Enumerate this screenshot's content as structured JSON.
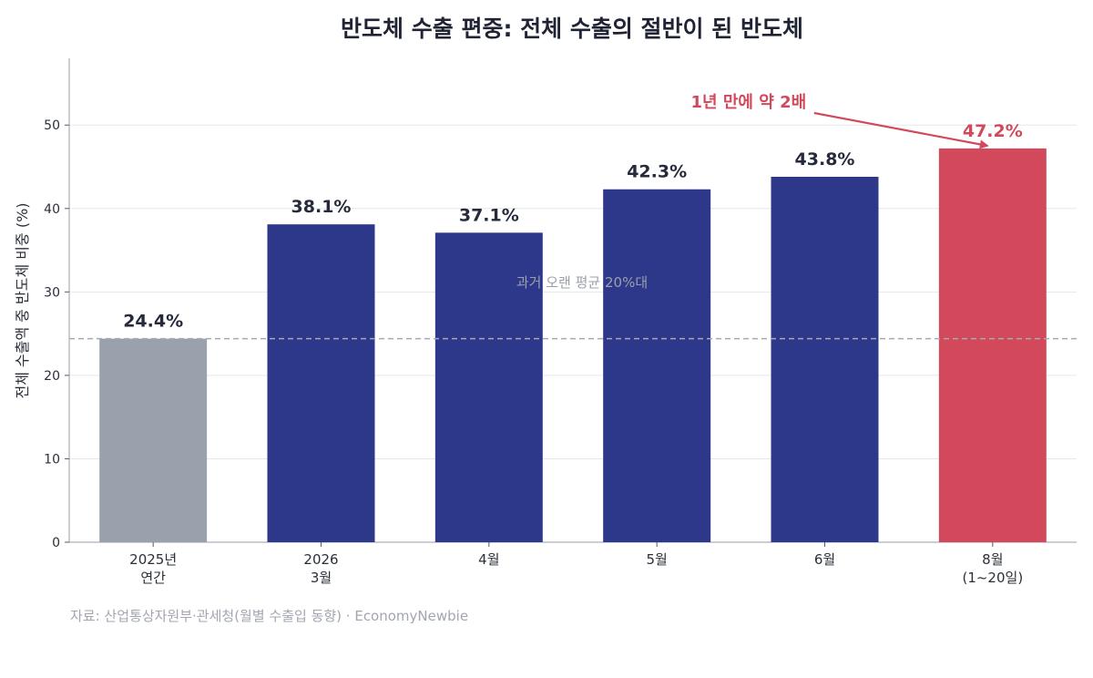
{
  "chart_data": {
    "type": "bar",
    "title": "반도체 수출 편중: 전체 수출의 절반이 된 반도체",
    "ylabel": "전체 수출액 중 반도체 비중 (%)",
    "xlabel": "",
    "ylim": [
      0,
      58
    ],
    "yticks": [
      0,
      10,
      20,
      30,
      40,
      50
    ],
    "grid": true,
    "categories": [
      [
        "2025년",
        "연간"
      ],
      [
        "2026",
        "3월"
      ],
      [
        "4월"
      ],
      [
        "5월"
      ],
      [
        "6월"
      ],
      [
        "8월",
        "(1~20일)"
      ]
    ],
    "values": [
      24.4,
      38.1,
      37.1,
      42.3,
      43.8,
      47.2
    ],
    "value_labels": [
      "24.4%",
      "38.1%",
      "37.1%",
      "42.3%",
      "43.8%",
      "47.2%"
    ],
    "bar_colors": [
      "#9aa1ad",
      "#2e388b",
      "#2e388b",
      "#2e388b",
      "#2e388b",
      "#d2495c"
    ],
    "highlight_index": 5,
    "reference_line": {
      "value": 24.4,
      "label": "과거 오랜 평균 20%대",
      "color": "#a7a9ad"
    },
    "annotation": {
      "text": "1년 만에 약 2배",
      "target_index": 5,
      "color": "#d2495c"
    }
  },
  "source": "자료: 산업통상자원부·관세청(월별 수출입 동향) · EconomyNewbie"
}
